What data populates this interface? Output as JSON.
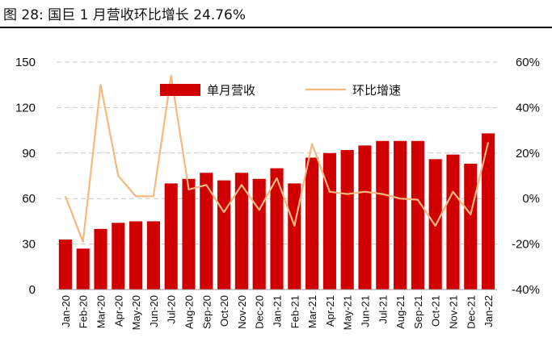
{
  "figure_label": "图 28:",
  "title": "国巨 1 月营收环比增长 24.76%",
  "chart_data": {
    "type": "bar+line",
    "categories": [
      "Jan-20",
      "Feb-20",
      "Mar-20",
      "Apr-20",
      "May-20",
      "Jun-20",
      "Jul-20",
      "Aug-20",
      "Sep-20",
      "Oct-20",
      "Nov-20",
      "Dec-20",
      "Jan-21",
      "Feb-21",
      "Mar-21",
      "Apr-21",
      "May-21",
      "Jun-21",
      "Jul-21",
      "Aug-21",
      "Sep-21",
      "Oct-21",
      "Nov-21",
      "Dec-21",
      "Jan-22"
    ],
    "series": [
      {
        "name": "单月营收",
        "type": "bar",
        "axis": "left",
        "color": "#d00000",
        "values": [
          33,
          27,
          40,
          44,
          45,
          45,
          70,
          73,
          77,
          72,
          77,
          73,
          80,
          70,
          87,
          90,
          92,
          95,
          98,
          98,
          98,
          86,
          89,
          83,
          103
        ]
      },
      {
        "name": "环比增速",
        "type": "line",
        "axis": "right",
        "color": "#f5b97f",
        "values": [
          1,
          -19,
          50,
          10,
          1,
          1,
          54,
          4,
          6,
          -6,
          6,
          -5,
          9,
          -12,
          24,
          3,
          2,
          3,
          2,
          0,
          -0.5,
          -12,
          3,
          -7,
          24.76
        ]
      }
    ],
    "y_left": {
      "min": 0,
      "max": 150,
      "ticks": [
        0,
        30,
        60,
        90,
        120,
        150
      ]
    },
    "y_right": {
      "min": -40,
      "max": 60,
      "ticks": [
        "-40%",
        "-20%",
        "0%",
        "20%",
        "40%",
        "60%"
      ]
    },
    "grid": "dashed horizontal",
    "legend": "top-center"
  }
}
